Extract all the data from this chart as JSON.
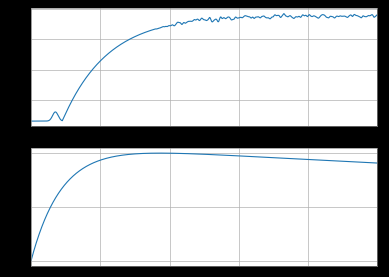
{
  "line_color": "#1f77b4",
  "line_width": 0.8,
  "background_color": "#000000",
  "axes_facecolor": "#ffffff",
  "grid_color": "#b0b0b0",
  "grid_alpha": 1.0,
  "n_points": 2000,
  "figsize": [
    3.89,
    2.77
  ],
  "dpi": 100
}
